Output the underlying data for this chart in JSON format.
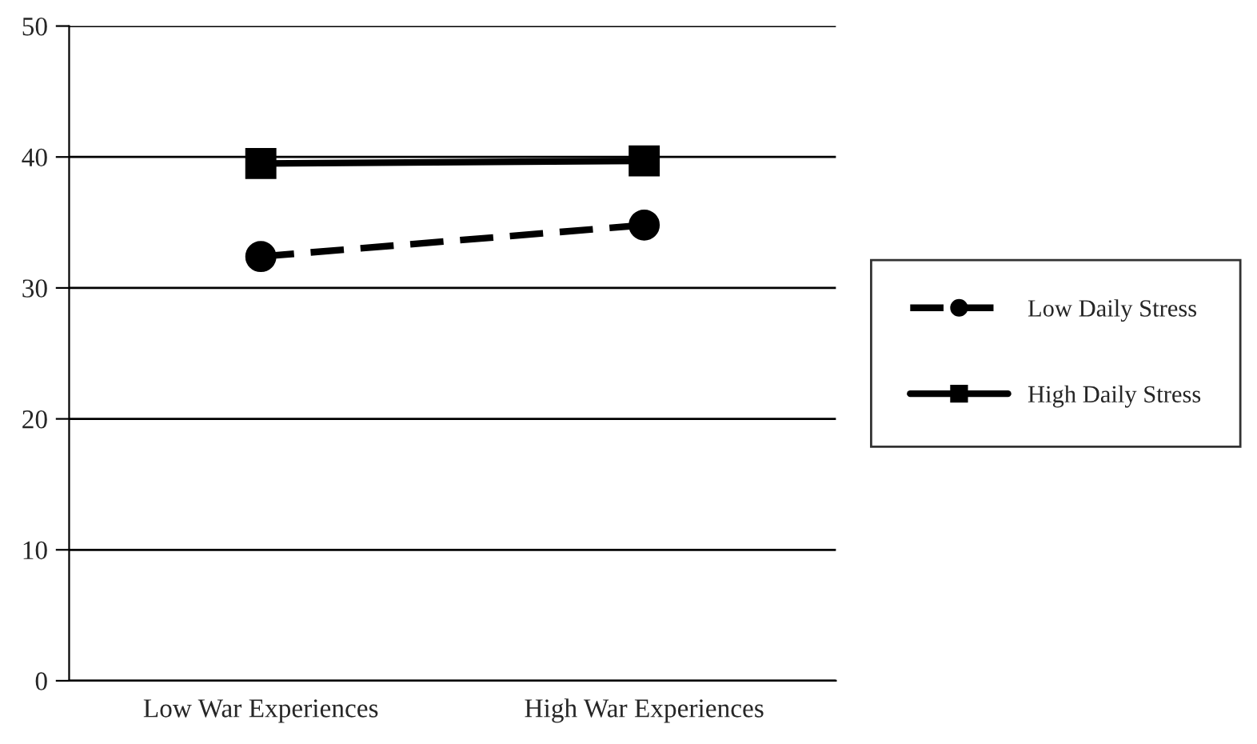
{
  "chart_data": {
    "type": "line",
    "categories": [
      "Low War Experiences",
      "High War Experiences"
    ],
    "series": [
      {
        "name": "Low Daily Stress",
        "color": "#000000",
        "values": [
          32.4,
          34.8
        ],
        "marker": "circle",
        "line_style": "dashed"
      },
      {
        "name": "High Daily Stress",
        "color": "#000000",
        "values": [
          39.5,
          39.7
        ],
        "marker": "square",
        "line_style": "solid"
      }
    ],
    "ylim": [
      0,
      50
    ],
    "yticks": [
      0,
      10,
      20,
      30,
      40,
      50
    ],
    "grid": "y",
    "legend": "right"
  }
}
